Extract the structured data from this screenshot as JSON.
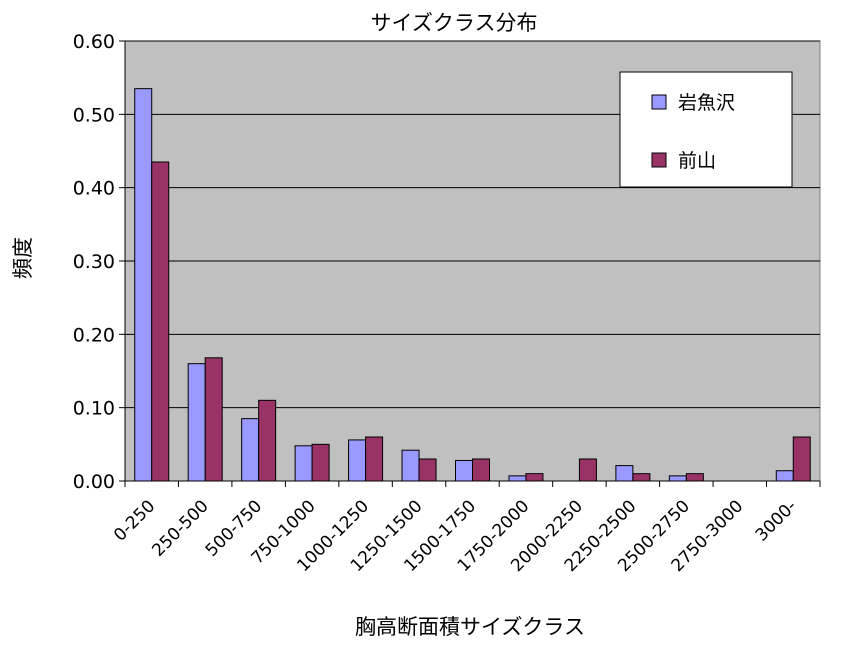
{
  "chart_data": {
    "type": "bar",
    "title": "サイズクラス分布",
    "xlabel": "胸高断面積サイズクラス",
    "ylabel": "頻度",
    "ylim": [
      0,
      0.6
    ],
    "yticks": [
      "0.00",
      "0.10",
      "0.20",
      "0.30",
      "0.40",
      "0.50",
      "0.60"
    ],
    "grid": true,
    "legend_position": "top-right",
    "categories": [
      "0-250",
      "250-500",
      "500-750",
      "750-1000",
      "1000-1250",
      "1250-1500",
      "1500-1750",
      "1750-2000",
      "2000-2250",
      "2250-2500",
      "2500-2750",
      "2750-3000",
      "3000-"
    ],
    "series": [
      {
        "name": "岩魚沢",
        "color": "#9999ff",
        "values": [
          0.535,
          0.16,
          0.085,
          0.048,
          0.056,
          0.042,
          0.028,
          0.007,
          0.0,
          0.021,
          0.007,
          0.0,
          0.014
        ]
      },
      {
        "name": "前山",
        "color": "#993366",
        "values": [
          0.435,
          0.168,
          0.11,
          0.05,
          0.06,
          0.03,
          0.03,
          0.01,
          0.03,
          0.01,
          0.01,
          0.0,
          0.06
        ]
      }
    ],
    "plot_background": "#c0c0c0"
  }
}
